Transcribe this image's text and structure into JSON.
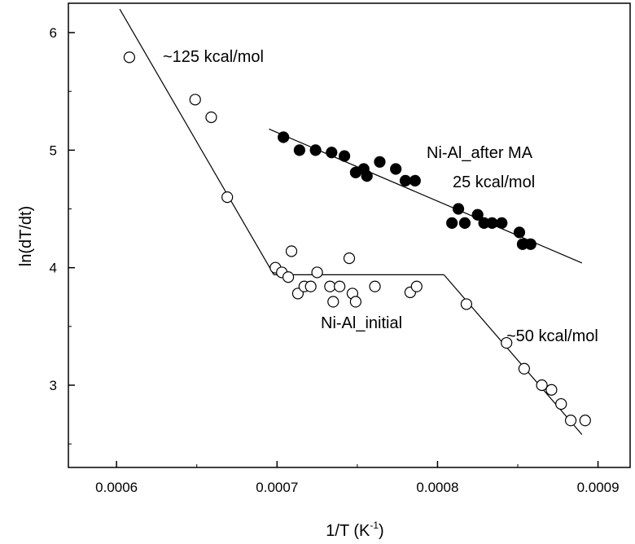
{
  "chart_data": {
    "type": "scatter",
    "xlabel": "1/T (K",
    "xlabel_sup": "-1",
    "xlabel_close": ")",
    "ylabel": "ln(dT/dt)",
    "xlim": [
      0.00057,
      0.00092
    ],
    "ylim": [
      2.3,
      6.25
    ],
    "x_ticks": [
      0.0006,
      0.0007,
      0.0008,
      0.0009
    ],
    "x_tick_labels": [
      "0.0006",
      "0.0007",
      "0.0008",
      "0.0009"
    ],
    "y_ticks": [
      3,
      4,
      5,
      6
    ],
    "y_tick_labels": [
      "3",
      "4",
      "5",
      "6"
    ],
    "grid": false,
    "series": [
      {
        "name": "Ni-Al_initial",
        "marker": "open-circle",
        "points": [
          [
            0.000608,
            5.79
          ],
          [
            0.000649,
            5.43
          ],
          [
            0.000659,
            5.28
          ],
          [
            0.000669,
            4.6
          ],
          [
            0.000699,
            4.0
          ],
          [
            0.000703,
            3.96
          ],
          [
            0.000707,
            3.92
          ],
          [
            0.000709,
            4.14
          ],
          [
            0.000713,
            3.78
          ],
          [
            0.000717,
            3.84
          ],
          [
            0.000721,
            3.84
          ],
          [
            0.000725,
            3.96
          ],
          [
            0.000733,
            3.84
          ],
          [
            0.000735,
            3.71
          ],
          [
            0.000739,
            3.84
          ],
          [
            0.000745,
            4.08
          ],
          [
            0.000747,
            3.78
          ],
          [
            0.000749,
            3.71
          ],
          [
            0.000761,
            3.84
          ],
          [
            0.000783,
            3.79
          ],
          [
            0.000787,
            3.84
          ],
          [
            0.000818,
            3.69
          ],
          [
            0.000843,
            3.36
          ],
          [
            0.000854,
            3.14
          ],
          [
            0.000865,
            3.0
          ],
          [
            0.000871,
            2.96
          ],
          [
            0.000877,
            2.84
          ],
          [
            0.000883,
            2.7
          ],
          [
            0.000892,
            2.7
          ]
        ]
      },
      {
        "name": "Ni-Al_after MA",
        "marker": "filled-circle",
        "points": [
          [
            0.000704,
            5.11
          ],
          [
            0.000714,
            5.0
          ],
          [
            0.000724,
            5.0
          ],
          [
            0.000734,
            4.98
          ],
          [
            0.000742,
            4.95
          ],
          [
            0.000749,
            4.81
          ],
          [
            0.000754,
            4.84
          ],
          [
            0.000756,
            4.78
          ],
          [
            0.000764,
            4.9
          ],
          [
            0.000774,
            4.84
          ],
          [
            0.00078,
            4.74
          ],
          [
            0.000786,
            4.74
          ],
          [
            0.000809,
            4.38
          ],
          [
            0.000813,
            4.5
          ],
          [
            0.000817,
            4.38
          ],
          [
            0.000825,
            4.45
          ],
          [
            0.000829,
            4.38
          ],
          [
            0.000834,
            4.38
          ],
          [
            0.00084,
            4.38
          ],
          [
            0.000851,
            4.3
          ],
          [
            0.000853,
            4.2
          ],
          [
            0.000858,
            4.2
          ]
        ]
      }
    ],
    "fit_lines": [
      {
        "series": "Ni-Al_initial",
        "label": "~125 kcal/mol",
        "points": [
          [
            0.000602,
            6.2
          ],
          [
            0.000698,
            3.94
          ]
        ]
      },
      {
        "series": "Ni-Al_initial",
        "points": [
          [
            0.000698,
            3.94
          ],
          [
            0.000804,
            3.94
          ]
        ]
      },
      {
        "series": "Ni-Al_initial",
        "label": "~50 kcal/mol",
        "points": [
          [
            0.000804,
            3.94
          ],
          [
            0.00089,
            2.58
          ]
        ]
      },
      {
        "series": "Ni-Al_after MA",
        "label": "25 kcal/mol",
        "points": [
          [
            0.000695,
            5.18
          ],
          [
            0.00089,
            4.04
          ]
        ]
      }
    ],
    "annotations": [
      {
        "text": "~125 kcal/mol"
      },
      {
        "text": "Ni-Al_after MA"
      },
      {
        "text": "25 kcal/mol"
      },
      {
        "text": "Ni-Al_initial"
      },
      {
        "text": "~50 kcal/mol"
      }
    ]
  }
}
